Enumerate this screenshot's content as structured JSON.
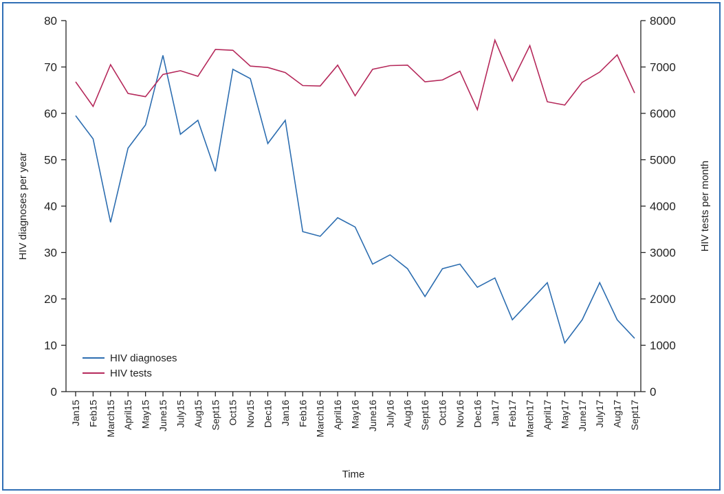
{
  "chart_data": {
    "type": "line",
    "xlabel": "Time",
    "ylabel_left": "HIV diagnoses per year",
    "ylabel_right": "HIV tests per month",
    "ylim_left": [
      0,
      80
    ],
    "ylim_right": [
      0,
      8000
    ],
    "yticks_left": [
      0,
      10,
      20,
      30,
      40,
      50,
      60,
      70,
      80
    ],
    "yticks_right": [
      0,
      1000,
      2000,
      3000,
      4000,
      5000,
      6000,
      7000,
      8000
    ],
    "grid": false,
    "legend_position": "bottom-left",
    "categories": [
      "Jan15",
      "Feb15",
      "March15",
      "April15",
      "May15",
      "June15",
      "July15",
      "Aug15",
      "Sept15",
      "Oct15",
      "Nov15",
      "Dec16",
      "Jan16",
      "Feb16",
      "March16",
      "April16",
      "May16",
      "June16",
      "July16",
      "Aug16",
      "Sept16",
      "Oct16",
      "Nov16",
      "Dec16",
      "Jan17",
      "Feb17",
      "March17",
      "April17",
      "May17",
      "June17",
      "July17",
      "Aug17",
      "Sept17"
    ],
    "series": [
      {
        "name": "HIV diagnoses",
        "axis": "left",
        "color": "#2c6db0",
        "values": [
          59.5,
          54.5,
          36.5,
          52.5,
          57.5,
          72.5,
          55.5,
          58.5,
          47.5,
          69.5,
          67.5,
          53.5,
          58.5,
          34.5,
          33.5,
          37.5,
          35.5,
          27.5,
          29.5,
          26.5,
          20.5,
          26.5,
          27.5,
          22.5,
          24.5,
          15.5,
          19.5,
          23.5,
          10.5,
          15.5,
          23.5,
          15.5,
          11.5
        ]
      },
      {
        "name": "HIV tests",
        "axis": "right",
        "color": "#b5285a",
        "values": [
          6680,
          6150,
          7050,
          6430,
          6360,
          6840,
          6920,
          6800,
          7380,
          7360,
          7020,
          6990,
          6880,
          6600,
          6590,
          7040,
          6380,
          6950,
          7030,
          7040,
          6680,
          6720,
          6910,
          6080,
          7580,
          6700,
          7460,
          6250,
          6180,
          6670,
          6890,
          7260,
          6440
        ]
      }
    ]
  }
}
